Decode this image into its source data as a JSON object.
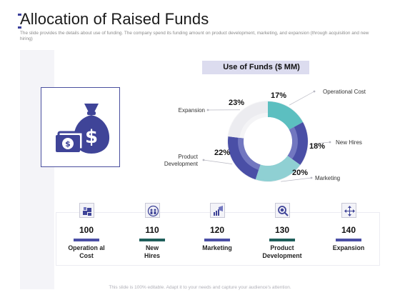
{
  "slide": {
    "title": "Allocation of Raised Funds",
    "subtitle": "The slide provides the details about use of funding. The company spend its funding amount on product development, marketing, and expansion (through acquisition and new hiring)",
    "footer": "This slide is 100% editable. Adapt it to your needs and capture your audience's attention.",
    "accent_color": "#3b3f9b"
  },
  "hero_icon": {
    "name": "money-bag-icon"
  },
  "chart_data": {
    "type": "pie",
    "title": "Use of Funds ($ MM)",
    "categories": [
      "Operational Cost",
      "New Hires",
      "Marketing",
      "Product Development",
      "Expansion"
    ],
    "values": [
      17,
      18,
      20,
      22,
      23
    ],
    "value_labels": [
      "17%",
      "18%",
      "20%",
      "22%",
      "23%"
    ],
    "colors": [
      "#5cbfc0",
      "#4a4fa6",
      "#8fd0d3",
      "#4a4fa6",
      "#ececf0"
    ],
    "donut": true
  },
  "cards": [
    {
      "value": "100",
      "label": "Operation al Cost",
      "icon": "boxes-icon",
      "bar_color": "#4a4fa6"
    },
    {
      "value": "110",
      "label": "New Hires",
      "icon": "team-icon",
      "bar_color": "#1f5e5b"
    },
    {
      "value": "120",
      "label": "Marketing",
      "icon": "megaphone-chart-icon",
      "bar_color": "#4a4fa6"
    },
    {
      "value": "130",
      "label": "Product Development",
      "icon": "magnifier-icon",
      "bar_color": "#1f5e5b"
    },
    {
      "value": "140",
      "label": "Expansion",
      "icon": "arrows-expand-icon",
      "bar_color": "#4a4fa6"
    }
  ]
}
